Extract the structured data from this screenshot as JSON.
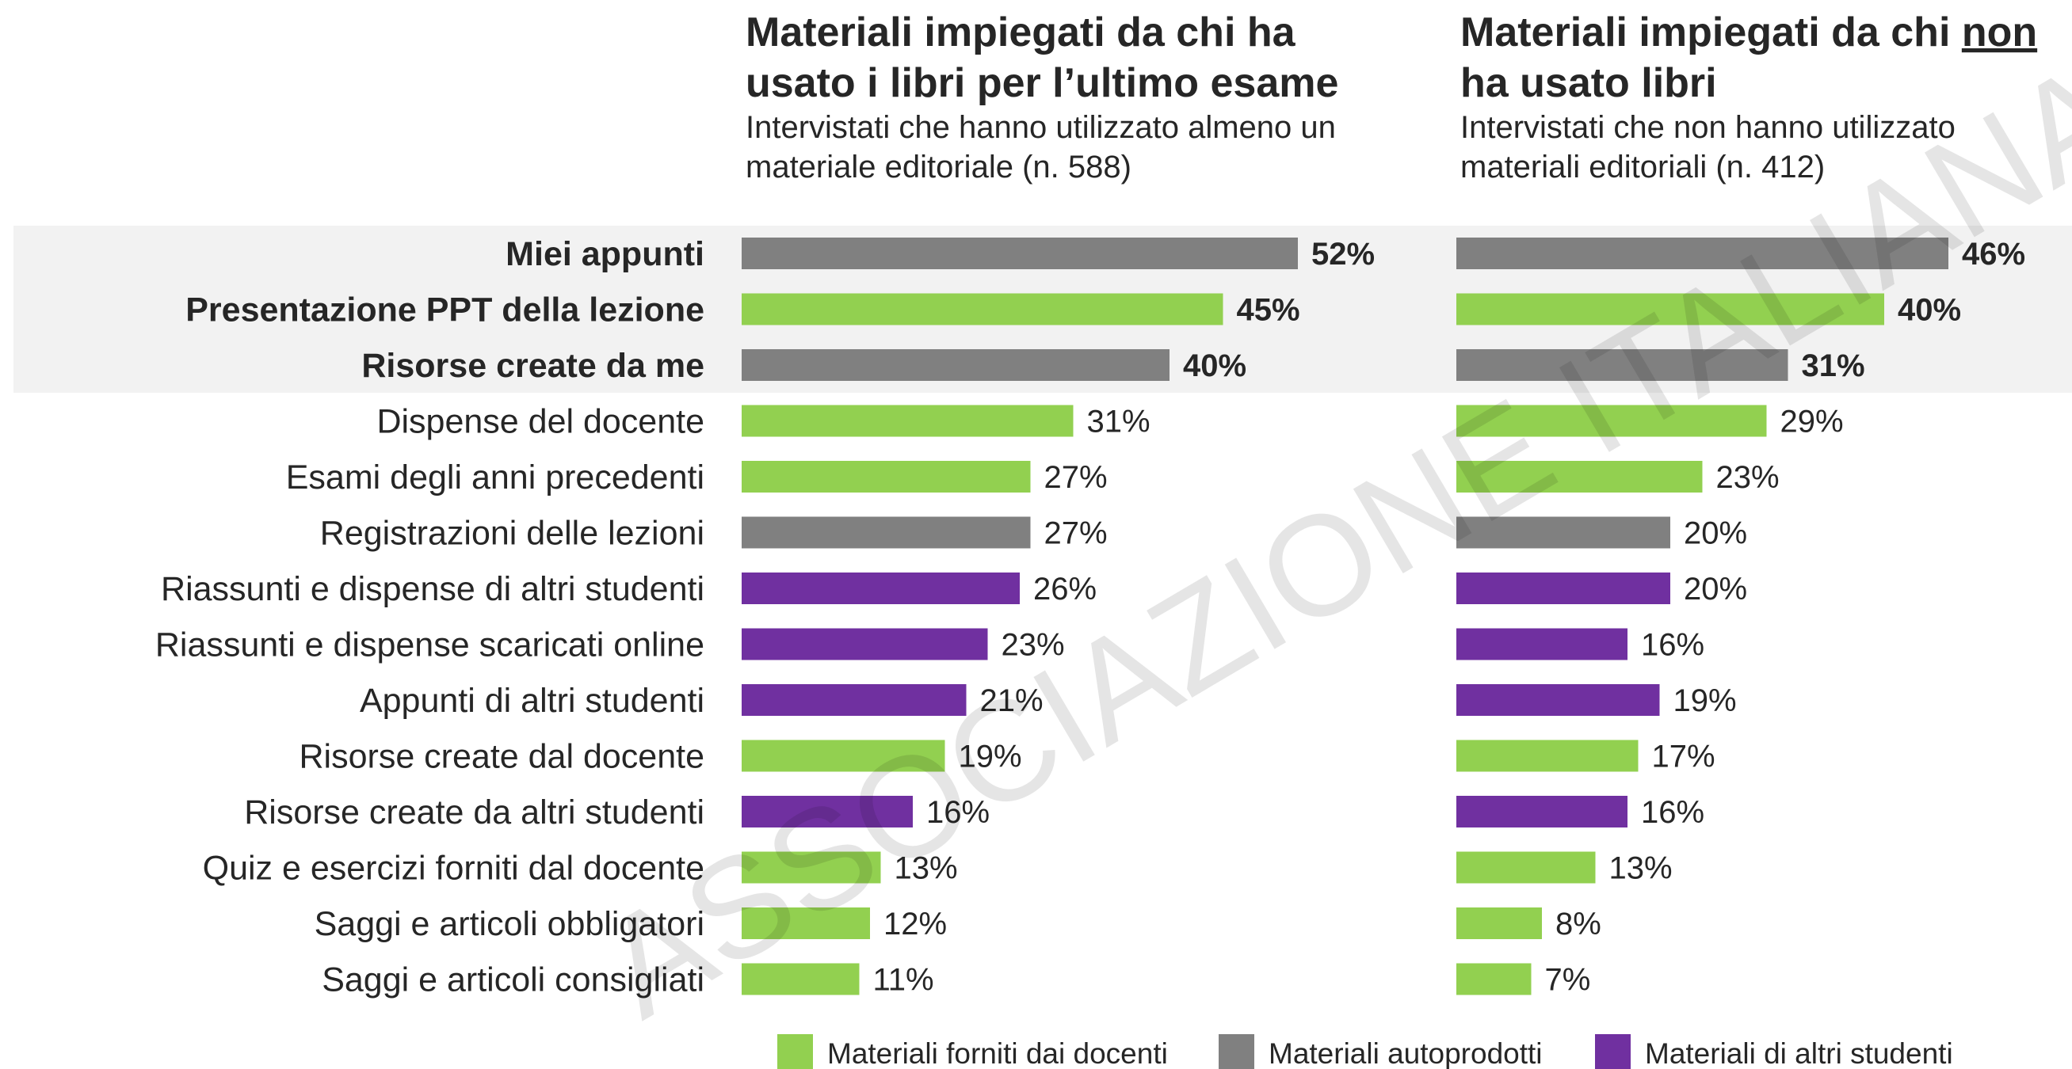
{
  "highlight_rows": 3,
  "watermark": "ASSOCIAZIONE ITALIANA ED",
  "legend": [
    {
      "name": "Materiali forniti dai docenti",
      "color": "#92d050"
    },
    {
      "name": "Materiali autoprodotti",
      "color": "#808080"
    },
    {
      "name": "Materiali di altri studenti",
      "color": "#7030a0"
    }
  ],
  "chart_data": [
    {
      "type": "bar",
      "title": [
        [
          "Materiali impiegati da chi ha"
        ],
        [
          "usato i libri per l’ultimo esame"
        ]
      ],
      "subtitle": [
        "Intervistati che hanno utilizzato almeno un",
        "materiale editoriale (n. 588)"
      ],
      "categories": [
        "Miei appunti",
        "Presentazione PPT della lezione",
        "Risorse create da me",
        "Dispense del docente",
        "Esami degli anni precedenti",
        "Registrazioni delle lezioni",
        "Riassunti e dispense di altri studenti",
        "Riassunti e dispense scaricati online",
        "Appunti di altri studenti",
        "Risorse create dal docente",
        "Risorse create da altri studenti",
        "Quiz e esercizi forniti dal docente",
        "Saggi e articoli obbligatori",
        "Saggi e articoli consigliati"
      ],
      "values": [
        52,
        45,
        40,
        31,
        27,
        27,
        26,
        23,
        21,
        19,
        16,
        13,
        12,
        11
      ],
      "value_labels": [
        "52%",
        "45%",
        "40%",
        "31%",
        "27%",
        "27%",
        "26%",
        "23%",
        "21%",
        "19%",
        "16%",
        "13%",
        "12%",
        "11%"
      ],
      "colors": [
        "#808080",
        "#92d050",
        "#808080",
        "#92d050",
        "#92d050",
        "#808080",
        "#7030a0",
        "#7030a0",
        "#7030a0",
        "#92d050",
        "#7030a0",
        "#92d050",
        "#92d050",
        "#92d050"
      ],
      "xlim": [
        0,
        100
      ]
    },
    {
      "type": "bar",
      "title": [
        [
          "Materiali impiegati da chi ",
          "non"
        ],
        [
          "ha usato libri"
        ]
      ],
      "title_underline": [
        0,
        1
      ],
      "subtitle": [
        "Intervistati che non hanno utilizzato",
        "materiali editoriali (n. 412)"
      ],
      "values": [
        46,
        40,
        31,
        29,
        23,
        20,
        20,
        16,
        19,
        17,
        16,
        13,
        8,
        7
      ],
      "value_labels": [
        "46%",
        "40%",
        "31%",
        "29%",
        "23%",
        "20%",
        "20%",
        "16%",
        "19%",
        "17%",
        "16%",
        "13%",
        "8%",
        "7%"
      ],
      "colors": [
        "#808080",
        "#92d050",
        "#808080",
        "#92d050",
        "#92d050",
        "#808080",
        "#7030a0",
        "#7030a0",
        "#7030a0",
        "#92d050",
        "#7030a0",
        "#92d050",
        "#92d050",
        "#92d050"
      ],
      "xlim": [
        0,
        100
      ]
    }
  ]
}
